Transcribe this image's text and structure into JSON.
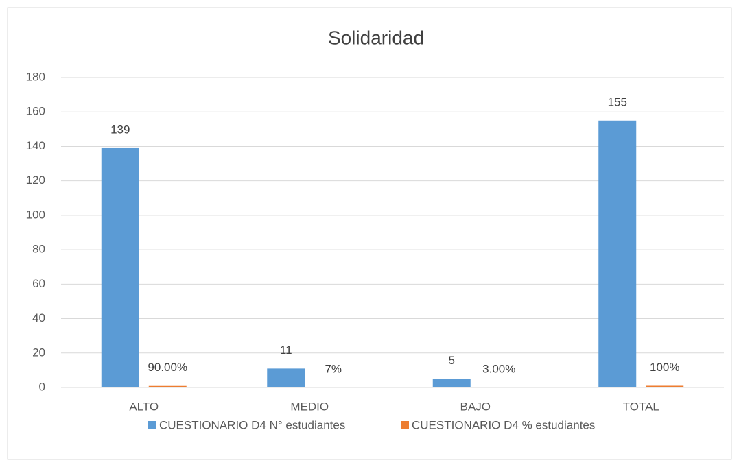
{
  "chart_data": {
    "type": "bar",
    "title": "Solidaridad",
    "categories": [
      "ALTO",
      "MEDIO",
      "BAJO",
      "TOTAL"
    ],
    "series": [
      {
        "name": "CUESTIONARIO D4 N° estudiantes",
        "color": "#5b9bd5",
        "values": [
          139,
          11,
          5,
          155
        ]
      },
      {
        "name": "CUESTIONARIO D4 % estudiantes",
        "color": "#ed7d31",
        "values": [
          0.9,
          0.07,
          0.03,
          1.0
        ],
        "value_labels": [
          "90.00%",
          "7%",
          "3.00%",
          "100%"
        ]
      }
    ],
    "ylim": [
      0,
      180
    ],
    "yticks": [
      0,
      20,
      40,
      60,
      80,
      100,
      120,
      140,
      160,
      180
    ],
    "grid": true,
    "legend": "bottom"
  }
}
